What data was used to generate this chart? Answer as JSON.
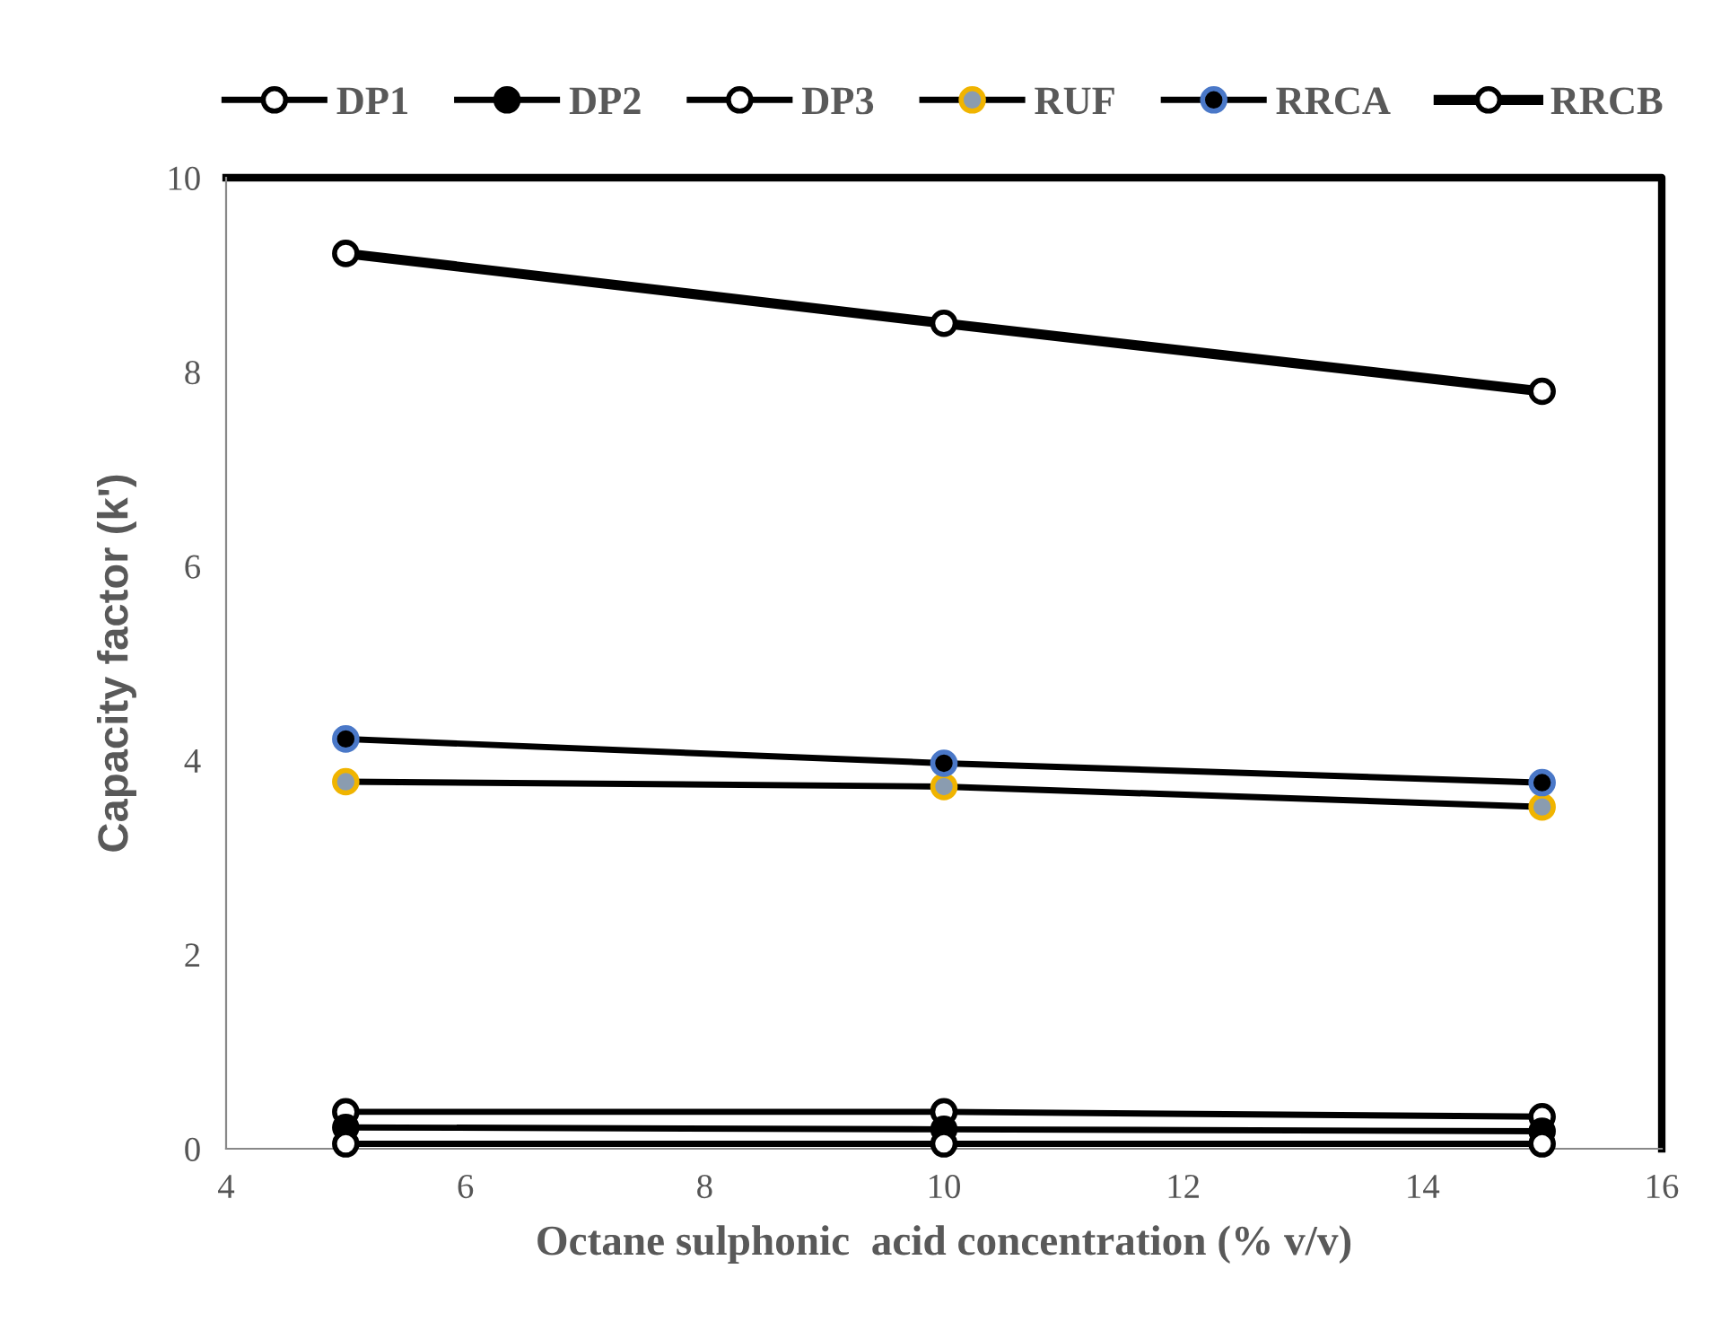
{
  "chart_data": {
    "type": "line",
    "xlabel": "Octane sulphonic  acid concentration (% v/v)",
    "ylabel": "Capacity factor (k')",
    "x": [
      5,
      10,
      15
    ],
    "xlim": [
      4,
      16
    ],
    "xticks": [
      4,
      6,
      8,
      10,
      12,
      14,
      16
    ],
    "ylim": [
      0,
      10
    ],
    "yticks": [
      0,
      2,
      4,
      6,
      8,
      10
    ],
    "grid": false,
    "legend": "top",
    "marker": "circle",
    "line_style": "solid",
    "series": [
      {
        "name": "DP1",
        "color": "#000000",
        "values": [
          0.38,
          0.38,
          0.33
        ]
      },
      {
        "name": "DP2",
        "color": "#000000",
        "values": [
          0.22,
          0.2,
          0.18
        ]
      },
      {
        "name": "DP3",
        "color": "#000000",
        "values": [
          0.05,
          0.05,
          0.05
        ]
      },
      {
        "name": "RUF",
        "color": "#000000",
        "values": [
          3.78,
          3.73,
          3.52
        ]
      },
      {
        "name": "RRCA",
        "color": "#000000",
        "values": [
          4.22,
          3.97,
          3.77
        ]
      },
      {
        "name": "RRCB",
        "color": "#000000",
        "values": [
          9.22,
          8.5,
          7.8
        ]
      }
    ]
  }
}
